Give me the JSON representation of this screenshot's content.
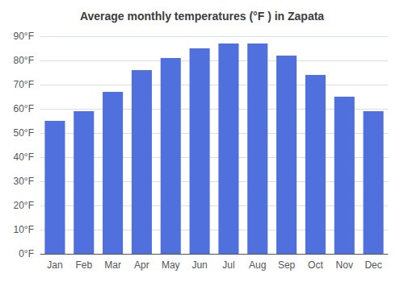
{
  "chart_data": {
    "type": "bar",
    "title": "Average monthly temperatures (°F ) in Zapata",
    "categories": [
      "Jan",
      "Feb",
      "Mar",
      "Apr",
      "May",
      "Jun",
      "Jul",
      "Aug",
      "Sep",
      "Oct",
      "Nov",
      "Dec"
    ],
    "values": [
      55,
      59,
      67,
      76,
      81,
      85,
      87,
      87,
      82,
      74,
      65,
      59
    ],
    "ylim": [
      0,
      90
    ],
    "yticks": [
      {
        "value": 0,
        "label": "0°F"
      },
      {
        "value": 10,
        "label": "10°F"
      },
      {
        "value": 20,
        "label": "20°F"
      },
      {
        "value": 30,
        "label": "30°F"
      },
      {
        "value": 40,
        "label": "40°F"
      },
      {
        "value": 50,
        "label": "50°F"
      },
      {
        "value": 60,
        "label": "60°F"
      },
      {
        "value": 70,
        "label": "70°F"
      },
      {
        "value": 80,
        "label": "80°F"
      },
      {
        "value": 90,
        "label": "90°F"
      }
    ],
    "grid": true
  }
}
